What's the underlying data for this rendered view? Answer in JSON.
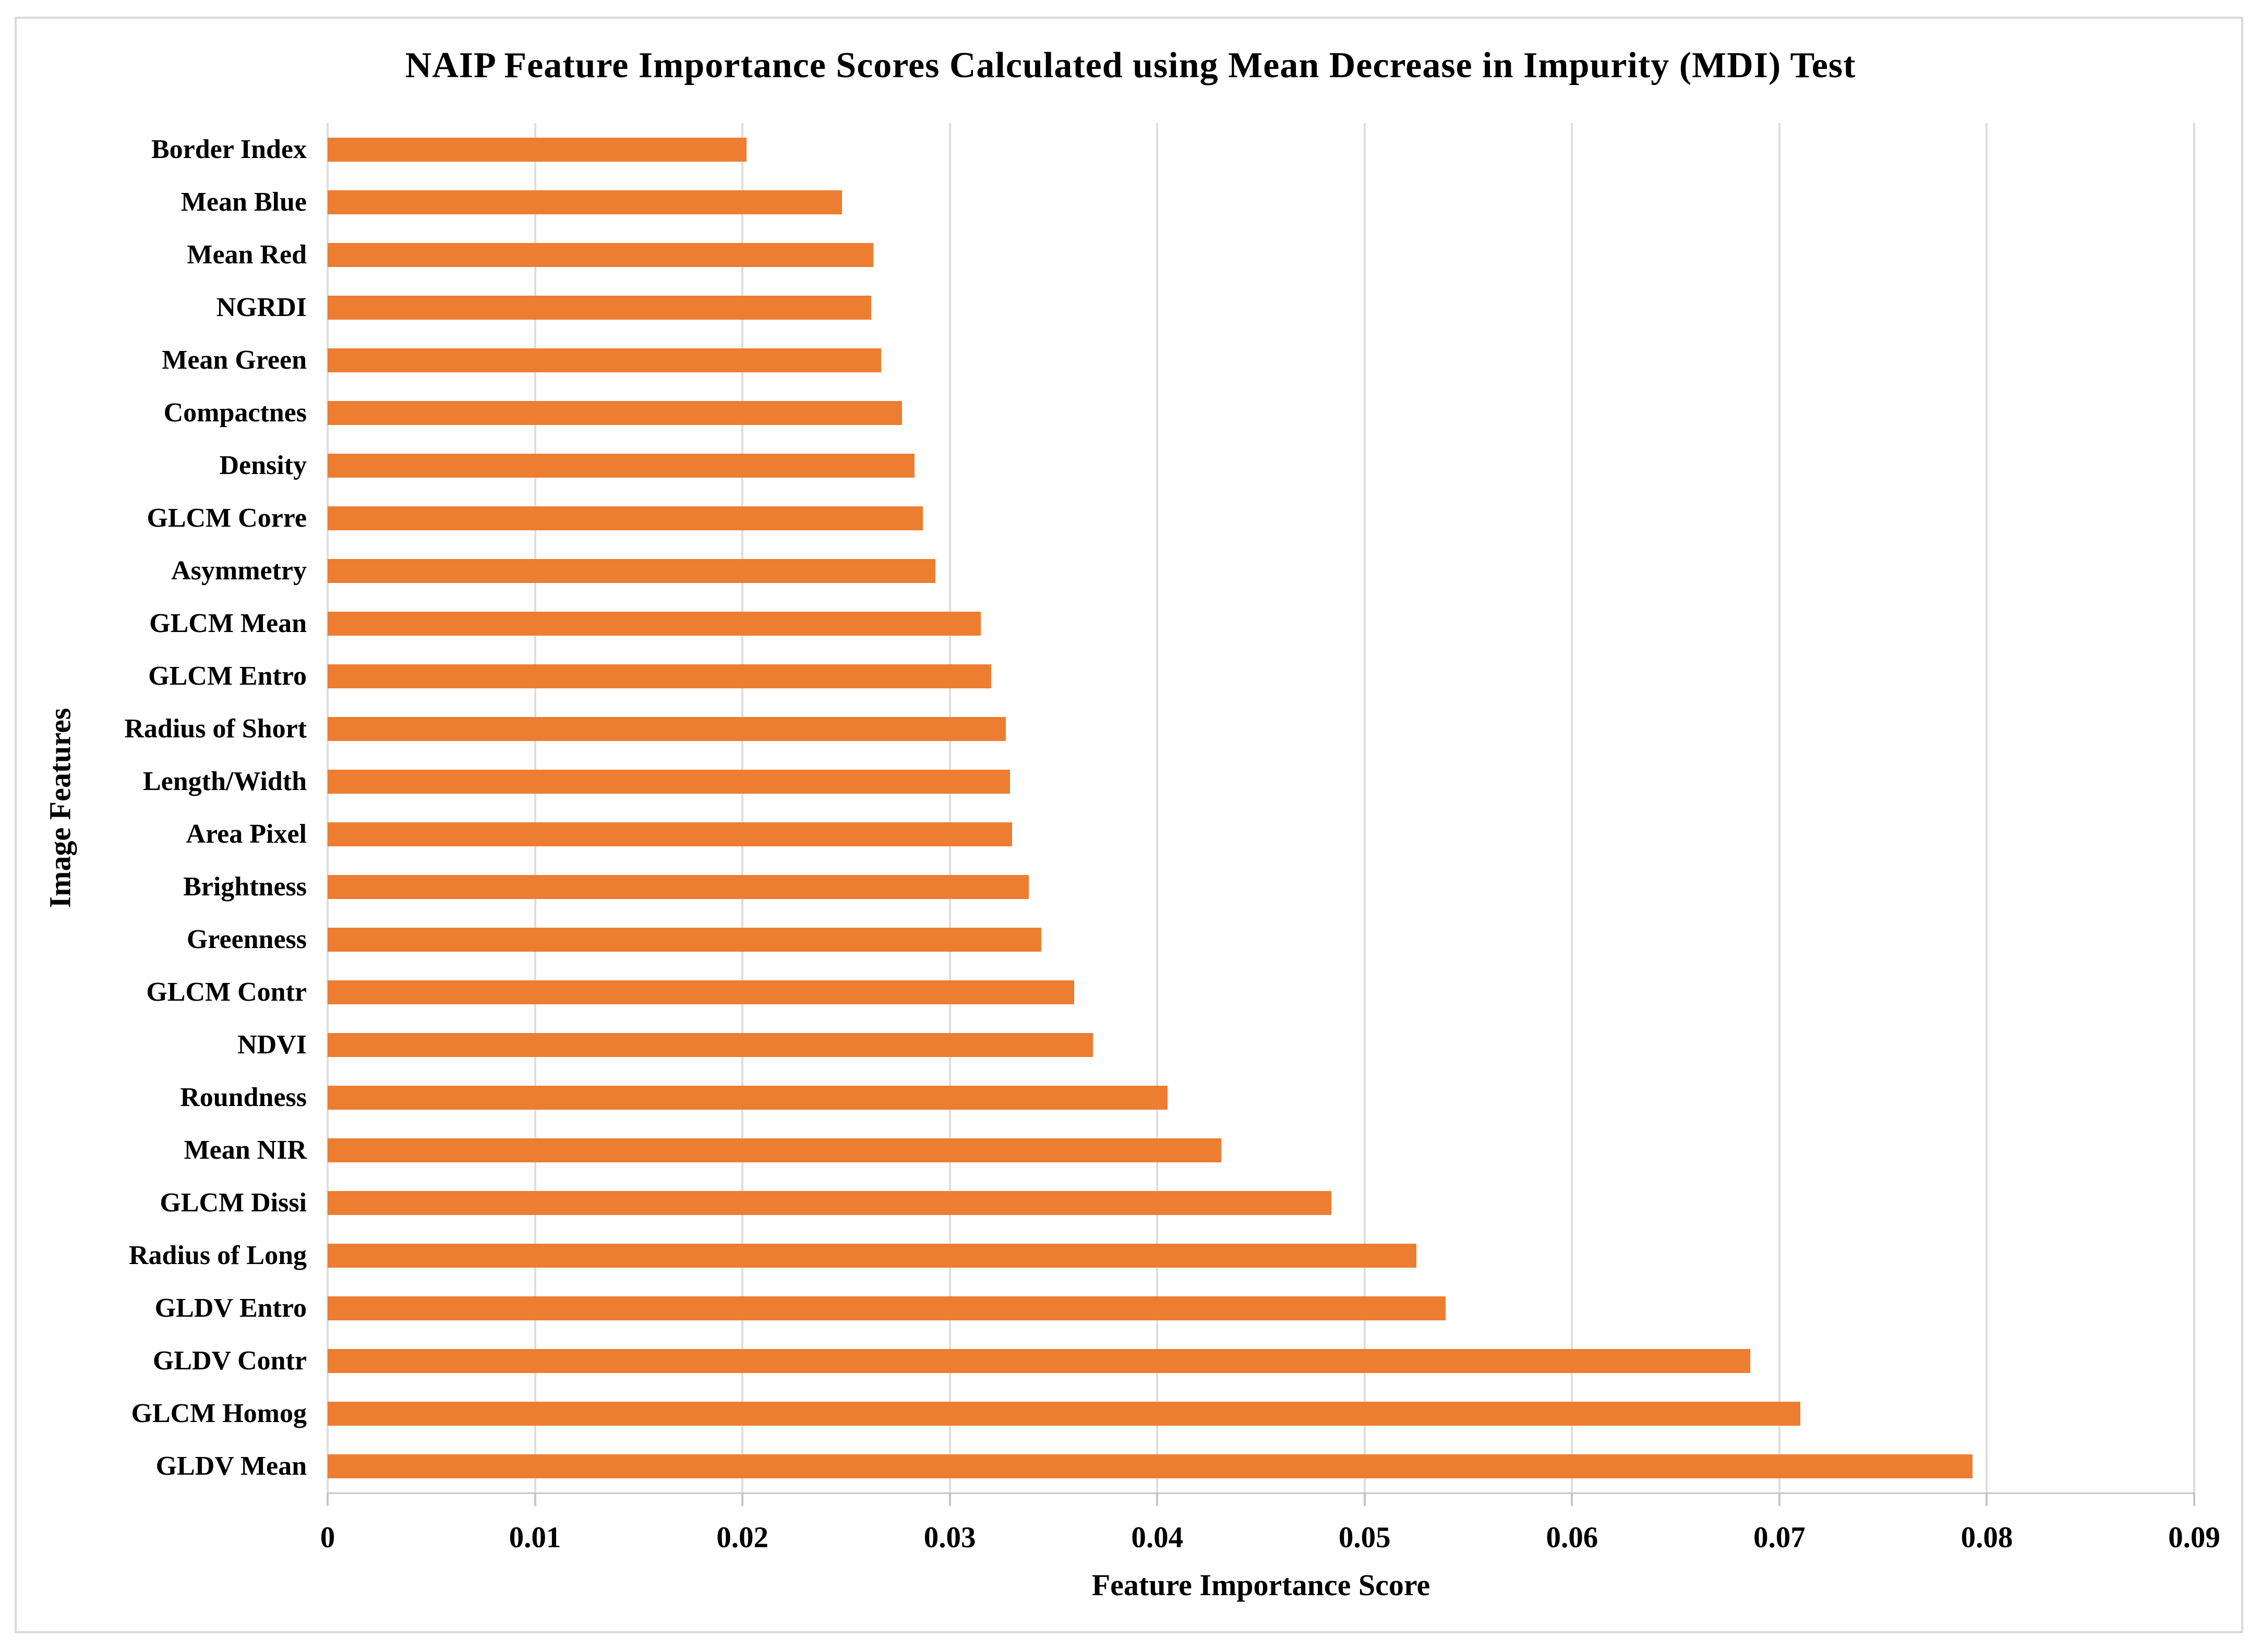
{
  "chart_data": {
    "type": "bar",
    "orientation": "horizontal",
    "title": "NAIP Feature Importance Scores Calculated using Mean Decrease in Impurity (MDI) Test",
    "xlabel": "Feature Importance Score",
    "ylabel": "Image Features",
    "xlim": [
      0,
      0.09
    ],
    "grid": true,
    "legend": false,
    "categories": [
      "Border Index",
      "Mean Blue",
      "Mean Red",
      "NGRDI",
      "Mean Green",
      "Compactnes",
      "Density",
      "GLCM Corre",
      "Asymmetry",
      "GLCM Mean",
      "GLCM Entro",
      "Radius of Short",
      "Length/Width",
      "Area Pixel",
      "Brightness",
      "Greenness",
      "GLCM Contr",
      "NDVI",
      "Roundness",
      "Mean NIR",
      "GLCM Dissi",
      "Radius of Long",
      "GLDV Entro",
      "GLDV Contr",
      "GLCM Homog",
      "GLDV Mean"
    ],
    "values": [
      0.0202,
      0.0248,
      0.0263,
      0.0262,
      0.0267,
      0.0277,
      0.0283,
      0.0287,
      0.0293,
      0.0315,
      0.032,
      0.0327,
      0.0329,
      0.033,
      0.0338,
      0.0344,
      0.036,
      0.0369,
      0.0405,
      0.0431,
      0.0484,
      0.0525,
      0.0539,
      0.0686,
      0.071,
      0.0793
    ],
    "x_ticks": [
      "0",
      "0.01",
      "0.02",
      "0.03",
      "0.04",
      "0.05",
      "0.06",
      "0.07",
      "0.08",
      "0.09"
    ]
  },
  "colors": {
    "bar": "#ed7d31",
    "gridline": "#dedede",
    "axis": "#c6c6c6",
    "frame_border": "#d9d9d9",
    "text": "#000000",
    "background": "#ffffff"
  }
}
